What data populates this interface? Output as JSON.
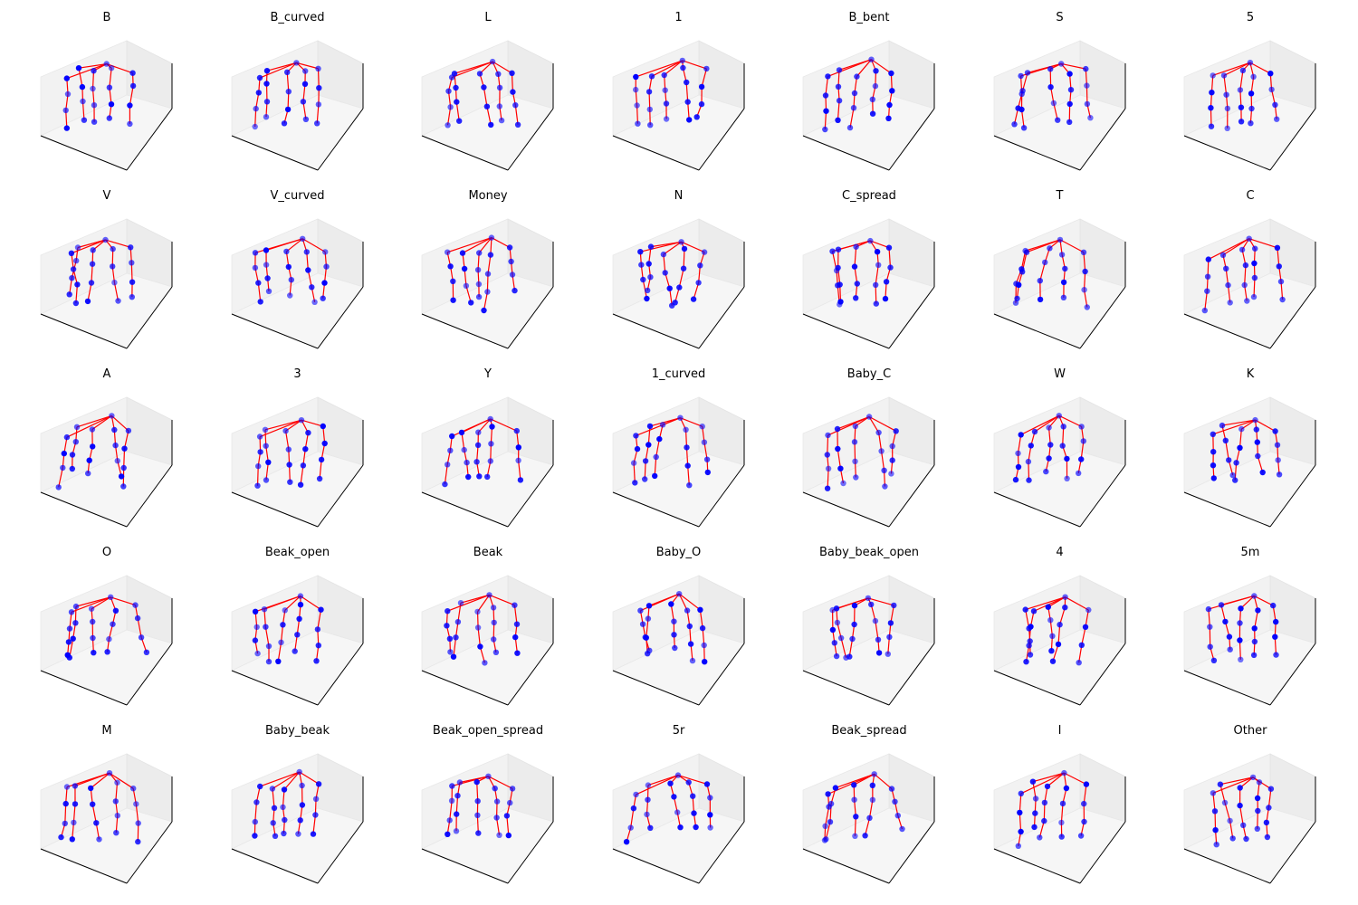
{
  "chart_data": {
    "type": "scatter",
    "description_free": true,
    "layout": {
      "rows": 5,
      "cols": 7
    },
    "colors": {
      "joint": "#0000ff",
      "bone": "#ff0000",
      "pane": "#f2f2f2",
      "axis": "#000000"
    },
    "panels": [
      {
        "title": "B"
      },
      {
        "title": "B_curved"
      },
      {
        "title": "L"
      },
      {
        "title": "1"
      },
      {
        "title": "B_bent"
      },
      {
        "title": "S"
      },
      {
        "title": "5"
      },
      {
        "title": "V"
      },
      {
        "title": "V_curved"
      },
      {
        "title": "Money"
      },
      {
        "title": "N"
      },
      {
        "title": "C_spread"
      },
      {
        "title": "T"
      },
      {
        "title": "C"
      },
      {
        "title": "A"
      },
      {
        "title": "3"
      },
      {
        "title": "Y"
      },
      {
        "title": "1_curved"
      },
      {
        "title": "Baby_C"
      },
      {
        "title": "W"
      },
      {
        "title": "K"
      },
      {
        "title": "O"
      },
      {
        "title": "Beak_open"
      },
      {
        "title": "Beak"
      },
      {
        "title": "Baby_O"
      },
      {
        "title": "Baby_beak_open"
      },
      {
        "title": "4"
      },
      {
        "title": "5m"
      },
      {
        "title": "M"
      },
      {
        "title": "Baby_beak"
      },
      {
        "title": "Beak_open_spread"
      },
      {
        "title": "5r"
      },
      {
        "title": "Beak_spread"
      },
      {
        "title": "I"
      },
      {
        "title": "Other"
      }
    ]
  }
}
